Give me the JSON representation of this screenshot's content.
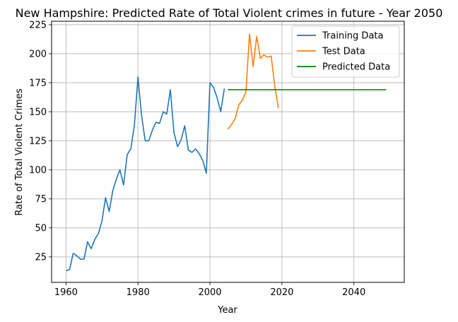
{
  "chart_data": {
    "type": "line",
    "title": "New Hampshire: Predicted Rate of Total Violent crimes in future - Year 2050",
    "xlabel": "Year",
    "ylabel": "Rate of Total Violent Crimes",
    "xlim": [
      1956,
      2054
    ],
    "ylim": [
      3,
      228
    ],
    "xticks": [
      1960,
      1980,
      2000,
      2020,
      2040
    ],
    "yticks": [
      25,
      50,
      75,
      100,
      125,
      150,
      175,
      200,
      225
    ],
    "grid": true,
    "legend_position": "top-right",
    "series": [
      {
        "name": "Training Data",
        "color": "#1f77b4",
        "x": [
          1960,
          1961,
          1962,
          1963,
          1964,
          1965,
          1966,
          1967,
          1968,
          1969,
          1970,
          1971,
          1972,
          1973,
          1974,
          1975,
          1976,
          1977,
          1978,
          1979,
          1980,
          1981,
          1982,
          1983,
          1984,
          1985,
          1986,
          1987,
          1988,
          1989,
          1990,
          1991,
          1992,
          1993,
          1994,
          1995,
          1996,
          1997,
          1998,
          1999,
          2000,
          2001,
          2002,
          2003,
          2004
        ],
        "y": [
          13,
          14,
          28,
          26,
          23,
          23,
          38,
          32,
          40,
          45,
          56,
          76,
          64,
          82,
          92,
          100,
          87,
          113,
          118,
          138,
          180,
          147,
          125,
          125,
          134,
          141,
          140,
          150,
          148,
          169,
          132,
          120,
          126,
          138,
          117,
          115,
          118,
          114,
          108,
          97,
          175,
          171,
          162,
          150,
          170
        ]
      },
      {
        "name": "Test Data",
        "color": "#ff7f0e",
        "x": [
          2005,
          2006,
          2007,
          2008,
          2009,
          2010,
          2011,
          2012,
          2013,
          2014,
          2015,
          2016,
          2017,
          2018,
          2019
        ],
        "y": [
          135,
          139,
          144,
          156,
          160,
          167,
          217,
          189,
          215,
          196,
          199,
          197,
          198,
          173,
          153
        ]
      },
      {
        "name": "Predicted Data",
        "color": "#008000",
        "x": [
          2005,
          2049
        ],
        "y": [
          169,
          169
        ]
      }
    ]
  }
}
